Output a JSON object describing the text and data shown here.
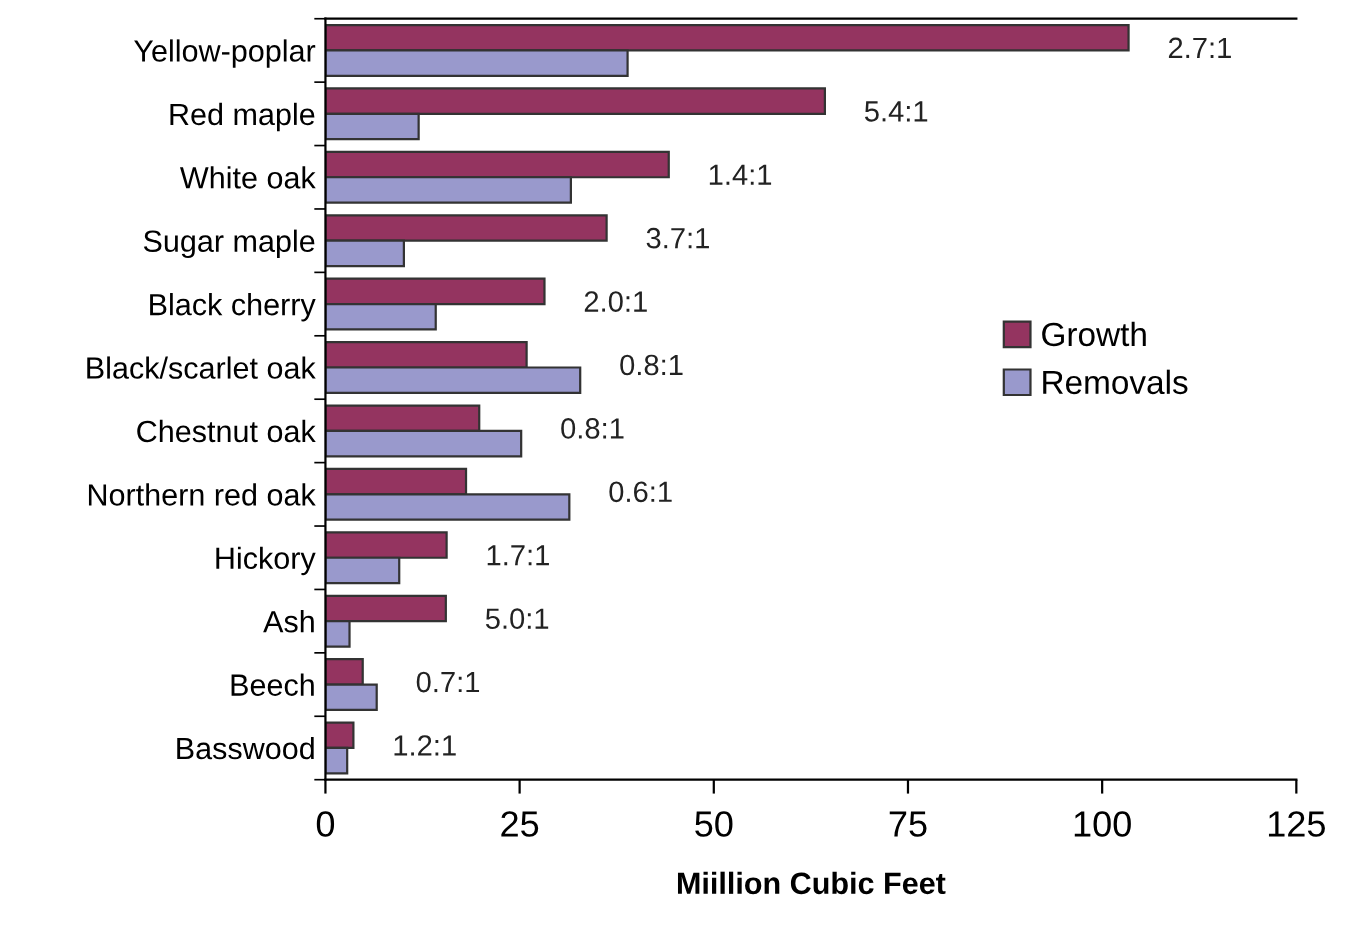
{
  "chart_data": {
    "type": "bar",
    "orientation": "horizontal",
    "xlabel": "Miillion Cubic Feet",
    "categories": [
      "Yellow-poplar",
      "Red maple",
      "White oak",
      "Sugar maple",
      "Black cherry",
      "Black/scarlet oak",
      "Chestnut oak",
      "Northern red oak",
      "Hickory",
      "Ash",
      "Beech",
      "Basswood"
    ],
    "series": [
      {
        "name": "Growth",
        "color": "#943460",
        "values": [
          103.4,
          64.3,
          44.2,
          36.2,
          28.2,
          25.9,
          19.8,
          18.1,
          15.6,
          15.5,
          4.8,
          3.6
        ]
      },
      {
        "name": "Removals",
        "color": "#9999cc",
        "values": [
          38.9,
          12.0,
          31.6,
          10.1,
          14.2,
          32.8,
          25.2,
          31.4,
          9.5,
          3.1,
          6.6,
          2.8
        ]
      }
    ],
    "annotations": [
      {
        "text": "2.7:1",
        "x": 103.4,
        "y": "Yellow-poplar"
      },
      {
        "text": "5.4:1",
        "x": 64.3,
        "y": "Red maple"
      },
      {
        "text": "1.4:1",
        "x": 44.2,
        "y": "White oak"
      },
      {
        "text": "3.7:1",
        "x": 36.2,
        "y": "Sugar maple"
      },
      {
        "text": "2.0:1",
        "x": 28.2,
        "y": "Black cherry"
      },
      {
        "text": "0.8:1",
        "x": 32.8,
        "y": "Black/scarlet oak"
      },
      {
        "text": "0.8:1",
        "x": 25.2,
        "y": "Chestnut oak"
      },
      {
        "text": "0.6:1",
        "x": 31.4,
        "y": "Northern red oak"
      },
      {
        "text": "1.7:1",
        "x": 15.6,
        "y": "Hickory"
      },
      {
        "text": "5.0:1",
        "x": 15.5,
        "y": "Ash"
      },
      {
        "text": "0.7:1",
        "x": 6.6,
        "y": "Beech"
      },
      {
        "text": "1.2:1",
        "x": 3.6,
        "y": "Basswood"
      }
    ],
    "xlim": [
      0,
      125
    ],
    "xticks": [
      0,
      25,
      50,
      75,
      100,
      125
    ],
    "grid": false,
    "legend": "center right"
  }
}
